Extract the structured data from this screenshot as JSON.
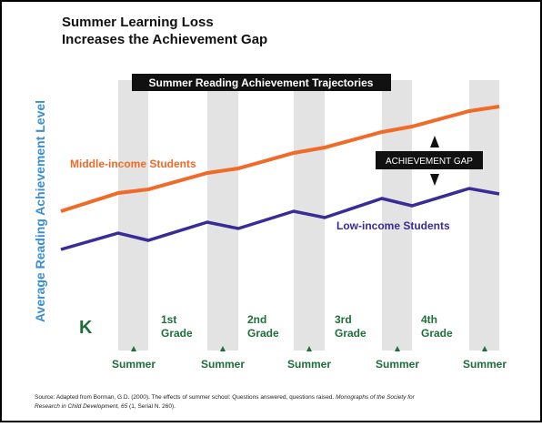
{
  "title": [
    "Summer Learning Loss",
    "Increases the Achievement Gap"
  ],
  "banner": "Summer Reading Achievement Trajectories",
  "y_label": "Average Reading Achievement Level",
  "middle_label": "Middle-income Students",
  "low_label": "Low-income Students",
  "gap_label": "ACHIEVEMENT GAP",
  "kindergarten": "K",
  "grades": [
    [
      "1st",
      "Grade"
    ],
    [
      "2nd",
      "Grade"
    ],
    [
      "3rd",
      "Grade"
    ],
    [
      "4th",
      "Grade"
    ]
  ],
  "summers": [
    "Summer",
    "Summer",
    "Summer",
    "Summer",
    "Summer"
  ],
  "source": {
    "line1_plain": "Source: Adapted from Borman, G.D. (2000). The effects of summer school: Questions answered, questions raised. ",
    "line1_italic": "Monographs of the Society for",
    "line2_italic": "Research in Child Development, 65",
    "line2_plain": " (1, Serial N. 260)."
  }
}
